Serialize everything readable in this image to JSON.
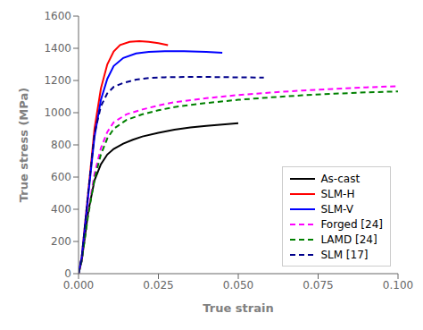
{
  "chart_data": {
    "type": "line",
    "xlabel": "True strain",
    "ylabel": "True stress (MPa)",
    "xlim": [
      0.0,
      0.1
    ],
    "ylim": [
      0,
      1600
    ],
    "xticks": [
      {
        "value": 0,
        "label": "0.000"
      },
      0.025,
      {
        "value": 0.05,
        "label": "0.050"
      },
      0.075,
      {
        "value": 0.1,
        "label": "0.100"
      }
    ],
    "yticks": [
      0,
      200,
      400,
      600,
      800,
      1000,
      1200,
      1400,
      1600
    ],
    "grid": false,
    "legend": "lower right",
    "series": [
      {
        "name": "As-cast",
        "color": "#000000",
        "line_style": "solid",
        "x": [
          0.0,
          0.001,
          0.003,
          0.005,
          0.007,
          0.009,
          0.011,
          0.014,
          0.017,
          0.02,
          0.025,
          0.03,
          0.035,
          0.04,
          0.045,
          0.05
        ],
        "values": [
          0,
          80,
          380,
          580,
          680,
          740,
          775,
          808,
          832,
          852,
          875,
          895,
          908,
          918,
          927,
          935
        ]
      },
      {
        "name": "SLM-H",
        "color": "#ff0000",
        "line_style": "solid",
        "x": [
          0.0,
          0.001,
          0.003,
          0.005,
          0.007,
          0.009,
          0.011,
          0.013,
          0.016,
          0.019,
          0.022,
          0.025,
          0.028
        ],
        "values": [
          0,
          100,
          500,
          900,
          1150,
          1300,
          1380,
          1420,
          1440,
          1445,
          1440,
          1432,
          1420
        ]
      },
      {
        "name": "SLM-V",
        "color": "#0000ff",
        "line_style": "solid",
        "x": [
          0.0,
          0.001,
          0.003,
          0.005,
          0.007,
          0.009,
          0.011,
          0.014,
          0.018,
          0.022,
          0.027,
          0.033,
          0.04,
          0.045
        ],
        "values": [
          0,
          100,
          480,
          850,
          1080,
          1210,
          1290,
          1340,
          1368,
          1378,
          1382,
          1382,
          1378,
          1372
        ]
      },
      {
        "name": "Forged [24]",
        "color": "#ff00ff",
        "line_style": "dashed",
        "x": [
          0.0,
          0.001,
          0.003,
          0.005,
          0.007,
          0.009,
          0.011,
          0.015,
          0.02,
          0.025,
          0.03,
          0.04,
          0.05,
          0.06,
          0.07,
          0.08,
          0.09,
          0.1
        ],
        "values": [
          0,
          80,
          380,
          620,
          780,
          880,
          940,
          990,
          1020,
          1045,
          1065,
          1090,
          1110,
          1125,
          1138,
          1148,
          1157,
          1165
        ]
      },
      {
        "name": "LAMD [24]",
        "color": "#008000",
        "line_style": "dashed",
        "x": [
          0.0,
          0.001,
          0.003,
          0.005,
          0.007,
          0.009,
          0.011,
          0.015,
          0.02,
          0.025,
          0.03,
          0.04,
          0.05,
          0.06,
          0.07,
          0.08,
          0.09,
          0.1
        ],
        "values": [
          0,
          80,
          360,
          590,
          740,
          840,
          900,
          955,
          990,
          1015,
          1035,
          1060,
          1080,
          1095,
          1108,
          1118,
          1126,
          1132
        ]
      },
      {
        "name": "SLM [17]",
        "color": "#00008b",
        "line_style": "dashed",
        "x": [
          0.0,
          0.001,
          0.003,
          0.005,
          0.007,
          0.009,
          0.011,
          0.014,
          0.018,
          0.022,
          0.027,
          0.033,
          0.04,
          0.048,
          0.058
        ],
        "values": [
          0,
          100,
          500,
          870,
          1040,
          1120,
          1160,
          1185,
          1205,
          1215,
          1220,
          1222,
          1222,
          1220,
          1218
        ]
      }
    ]
  }
}
